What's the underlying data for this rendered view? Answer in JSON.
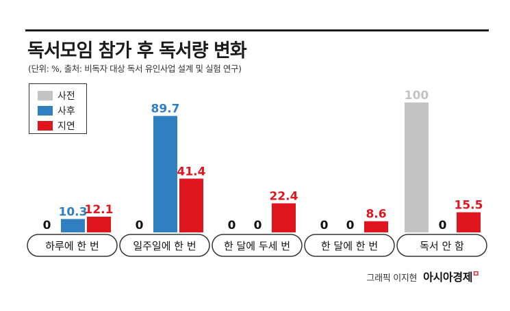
{
  "header": {
    "title": "독서모임 참가 후 독서량 변화",
    "subtitle": "(단위: %, 출처: 비독자 대상 독서 유인사업 설계 및 실험 연구)"
  },
  "footer": {
    "credit": "그래픽 이지현",
    "brand": "아시아경제",
    "brand_mark": "ㅁ"
  },
  "colors": {
    "before": "#c3c3c3",
    "after": "#2f7fc1",
    "delayed": "#e0161e"
  },
  "chart_data": {
    "type": "bar",
    "title": "독서모임 참가 후 독서량 변화",
    "unit": "%",
    "categories": [
      "하루에 한 번",
      "일주일에 한 번",
      "한 달에 두세 번",
      "한 달에 한 번",
      "독서 안 함"
    ],
    "series": [
      {
        "name": "사전",
        "values": [
          0,
          0,
          0,
          0,
          100
        ]
      },
      {
        "name": "사후",
        "values": [
          10.3,
          89.7,
          0,
          0,
          0
        ]
      },
      {
        "name": "지연",
        "values": [
          12.1,
          41.4,
          22.4,
          8.6,
          15.5
        ]
      }
    ],
    "ylim": [
      0,
      100
    ],
    "legend_position": "top-left"
  }
}
